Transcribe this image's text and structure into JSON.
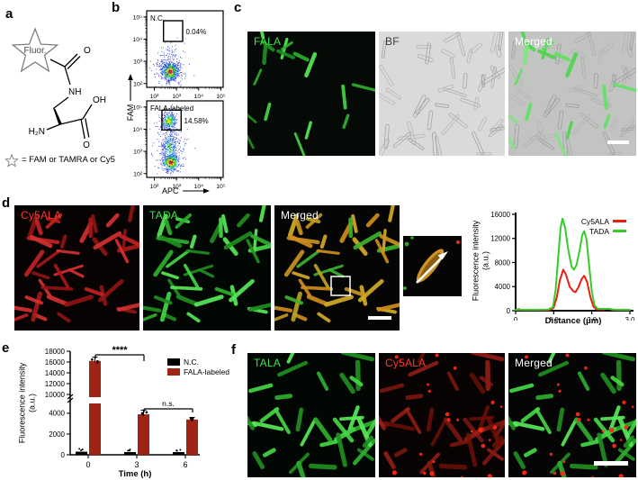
{
  "figure": {
    "panel_labels": {
      "a": "a",
      "b": "b",
      "c": "c",
      "d": "d",
      "e": "e",
      "f": "f"
    }
  },
  "panel_a": {
    "fluor_text": "Fluor.",
    "atom_nh": "NH",
    "atom_h2n": "H₂N",
    "atom_oh": "OH",
    "atom_o_top": "O",
    "atom_o_bottom": "O",
    "star_legend": "= FAM or TAMRA or Cy5"
  },
  "panel_b": {
    "y_axis": "FAM",
    "x_axis": "APC",
    "plots": [
      {
        "title": "N.C.",
        "gate": "0.04%"
      },
      {
        "title": "FALA-labeled",
        "gate": "14.58%"
      }
    ]
  },
  "panel_c": {
    "images": [
      {
        "label": "FALA"
      },
      {
        "label": "BF"
      },
      {
        "label": "Merged"
      }
    ]
  },
  "panel_d": {
    "images": [
      {
        "label": "Cy5ALA"
      },
      {
        "label": "TADA"
      },
      {
        "label": "Merged"
      }
    ]
  },
  "panel_f": {
    "images": [
      {
        "label": "TALA"
      },
      {
        "label": "Cy5ALA"
      },
      {
        "label": "Merged"
      }
    ]
  },
  "colors": {
    "green_label": "#3fe050",
    "red_label": "#ff392b",
    "white_label": "#ffffff",
    "bf_label": "#3a3a3a",
    "bar_red": "#9e2415",
    "bar_black": "#000000",
    "line_red": "#ec1c12",
    "line_green": "#35cc28"
  },
  "chart_data": [
    {
      "id": "flow_nc",
      "type": "scatter",
      "title": "N.C.",
      "gate_percent": "0.04%",
      "xlabel": "APC",
      "ylabel": "FAM",
      "x_ticks": [
        "10²",
        "10³",
        "10⁴",
        "10⁵"
      ],
      "y_ticks": [
        "10²",
        "10³",
        "10⁴",
        "10⁵"
      ],
      "scale": "log 1e2–1e5 both axes",
      "population": "single dense cluster near APC≈3×10², FAM≈5×10²"
    },
    {
      "id": "flow_fala",
      "type": "scatter",
      "title": "FALA-labeled",
      "gate_percent": "14.58%",
      "xlabel": "APC",
      "ylabel": "FAM",
      "x_ticks": [
        "10²",
        "10³",
        "10⁴",
        "10⁵"
      ],
      "y_ticks": [
        "10²",
        "10³",
        "10⁴",
        "10⁵"
      ],
      "scale": "log 1e2–1e5 both axes",
      "population": "main cluster near FAM≈5×10² with vertical tail and second cluster inside gate near FAM≈3×10⁴"
    },
    {
      "id": "line_profile",
      "type": "line",
      "xlabel": "Distance (μm)",
      "ylabel_lines": [
        "Fluorescence intensity",
        "(a.u.)"
      ],
      "xlim": [
        0,
        3
      ],
      "ylim": [
        0,
        16000
      ],
      "x_ticks": [
        "0",
        "1.0",
        "2.0",
        "3.0"
      ],
      "x_tick_vals": [
        0,
        1,
        2,
        3
      ],
      "y_ticks": [
        "0",
        "4000",
        "8000",
        "12000",
        "16000"
      ],
      "y_tick_vals": [
        0,
        4000,
        8000,
        12000,
        16000
      ],
      "legend_position": "top-right",
      "series": [
        {
          "name": "Cy5ALA",
          "color": "#ec1c12",
          "points": [
            [
              0,
              110
            ],
            [
              0.08,
              260
            ],
            [
              0.15,
              120
            ],
            [
              0.9,
              110
            ],
            [
              1.0,
              500
            ],
            [
              1.08,
              2200
            ],
            [
              1.16,
              5000
            ],
            [
              1.25,
              6800
            ],
            [
              1.32,
              6000
            ],
            [
              1.42,
              4000
            ],
            [
              1.52,
              3200
            ],
            [
              1.57,
              3100
            ],
            [
              1.65,
              3900
            ],
            [
              1.73,
              5200
            ],
            [
              1.8,
              5800
            ],
            [
              1.88,
              4700
            ],
            [
              1.96,
              2300
            ],
            [
              2.04,
              700
            ],
            [
              2.12,
              220
            ],
            [
              2.3,
              180
            ],
            [
              2.42,
              350
            ],
            [
              2.55,
              130
            ],
            [
              3.0,
              110
            ]
          ]
        },
        {
          "name": "TADA",
          "color": "#35cc28",
          "points": [
            [
              0,
              150
            ],
            [
              0.55,
              150
            ],
            [
              0.85,
              180
            ],
            [
              0.98,
              600
            ],
            [
              1.05,
              3500
            ],
            [
              1.12,
              9000
            ],
            [
              1.18,
              13800
            ],
            [
              1.23,
              15300
            ],
            [
              1.3,
              13800
            ],
            [
              1.38,
              10200
            ],
            [
              1.47,
              7300
            ],
            [
              1.53,
              6800
            ],
            [
              1.6,
              7600
            ],
            [
              1.68,
              10000
            ],
            [
              1.75,
              12600
            ],
            [
              1.8,
              13200
            ],
            [
              1.86,
              11900
            ],
            [
              1.93,
              7500
            ],
            [
              2.0,
              3200
            ],
            [
              2.07,
              900
            ],
            [
              2.15,
              350
            ],
            [
              2.3,
              300
            ],
            [
              2.45,
              300
            ],
            [
              2.6,
              160
            ],
            [
              3.0,
              130
            ]
          ]
        }
      ]
    },
    {
      "id": "bar_timecourse",
      "type": "bar",
      "xlabel": "Time (h)",
      "ylabel_lines": [
        "Fluorescence intensity",
        "(a.u.)"
      ],
      "categories": [
        "0",
        "3",
        "6"
      ],
      "series": [
        {
          "name": "N.C.",
          "color": "#000000",
          "values": [
            300,
            260,
            260
          ],
          "errors": [
            60,
            50,
            50
          ]
        },
        {
          "name": "FALA-labeled",
          "color": "#9e2415",
          "values": [
            16200,
            3900,
            3400
          ],
          "errors": [
            700,
            400,
            200
          ]
        }
      ],
      "y_ticks_lower": [
        0,
        2000,
        4000
      ],
      "y_ticks_upper": [
        10000,
        12000,
        14000,
        16000,
        18000
      ],
      "axis_break_between": [
        4600,
        10000
      ],
      "annotations": [
        {
          "text": "****",
          "between": [
            0,
            1
          ]
        },
        {
          "text": "n.s.",
          "between": [
            1,
            2
          ]
        }
      ]
    }
  ]
}
